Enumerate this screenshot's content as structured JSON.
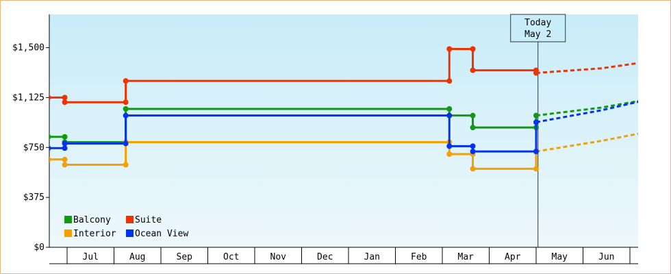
{
  "chart_data": {
    "type": "line",
    "title": "",
    "xlabel": "",
    "ylabel": "",
    "ylim": [
      0,
      1750
    ],
    "y_ticks": [
      {
        "value": 0,
        "label": "$0"
      },
      {
        "value": 375,
        "label": "$375"
      },
      {
        "value": 750,
        "label": "$750"
      },
      {
        "value": 1125,
        "label": "$1,125"
      },
      {
        "value": 1500,
        "label": "$1,500"
      }
    ],
    "months": [
      "Jul",
      "Aug",
      "Sep",
      "Oct",
      "Nov",
      "Dec",
      "Jan",
      "Feb",
      "Mar",
      "Apr",
      "May",
      "Jun"
    ],
    "today": {
      "line1": "Today",
      "line2": "May 2",
      "x": 10.04
    },
    "background_gradient": [
      "#c8ecf8",
      "#eef8fc"
    ],
    "series": [
      {
        "name": "Balcony",
        "color": "#119911",
        "points": [
          [
            -0.4,
            830
          ],
          [
            -0.05,
            830
          ],
          [
            -0.05,
            790
          ],
          [
            1.25,
            790
          ],
          [
            1.25,
            1040
          ],
          [
            8.15,
            1040
          ],
          [
            8.15,
            990
          ],
          [
            8.65,
            990
          ],
          [
            8.65,
            900
          ],
          [
            10.0,
            900
          ],
          [
            10.0,
            990
          ]
        ],
        "forecast": [
          [
            10.0,
            990
          ],
          [
            11.4,
            1050
          ],
          [
            12.2,
            1100
          ]
        ]
      },
      {
        "name": "Suite",
        "color": "#ee3300",
        "points": [
          [
            -0.4,
            1125
          ],
          [
            -0.05,
            1125
          ],
          [
            -0.05,
            1090
          ],
          [
            1.25,
            1090
          ],
          [
            1.25,
            1250
          ],
          [
            8.15,
            1250
          ],
          [
            8.15,
            1490
          ],
          [
            8.65,
            1490
          ],
          [
            8.65,
            1330
          ],
          [
            10.0,
            1330
          ],
          [
            10.0,
            1310
          ]
        ],
        "forecast": [
          [
            10.0,
            1310
          ],
          [
            11.4,
            1345
          ],
          [
            12.2,
            1385
          ]
        ]
      },
      {
        "name": "Interior",
        "color": "#f5a000",
        "points": [
          [
            -0.4,
            660
          ],
          [
            -0.05,
            660
          ],
          [
            -0.05,
            620
          ],
          [
            1.25,
            620
          ],
          [
            1.25,
            790
          ],
          [
            8.15,
            790
          ],
          [
            8.15,
            700
          ],
          [
            8.65,
            700
          ],
          [
            8.65,
            590
          ],
          [
            10.0,
            590
          ],
          [
            10.0,
            720
          ]
        ],
        "forecast": [
          [
            10.0,
            720
          ],
          [
            11.4,
            800
          ],
          [
            12.2,
            855
          ]
        ]
      },
      {
        "name": "Ocean View",
        "color": "#0033ee",
        "points": [
          [
            -0.4,
            745
          ],
          [
            -0.05,
            745
          ],
          [
            -0.05,
            780
          ],
          [
            1.25,
            780
          ],
          [
            1.25,
            990
          ],
          [
            8.15,
            990
          ],
          [
            8.15,
            760
          ],
          [
            8.65,
            760
          ],
          [
            8.65,
            720
          ],
          [
            10.0,
            720
          ],
          [
            10.0,
            940
          ]
        ],
        "forecast": [
          [
            10.0,
            940
          ],
          [
            11.4,
            1030
          ],
          [
            12.2,
            1095
          ]
        ]
      }
    ],
    "legend": {
      "placement": "bottom-left",
      "entries": [
        {
          "name": "Balcony",
          "color": "#119911"
        },
        {
          "name": "Suite",
          "color": "#ee3300"
        },
        {
          "name": "Interior",
          "color": "#f5a000"
        },
        {
          "name": "Ocean View",
          "color": "#0033ee"
        }
      ]
    }
  }
}
